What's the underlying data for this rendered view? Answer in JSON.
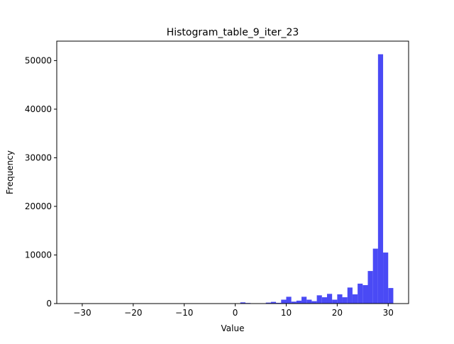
{
  "chart_data": {
    "type": "bar",
    "title": "Histogram_table_9_iter_23",
    "xlabel": "Value",
    "ylabel": "Frequency",
    "xlim": [
      -35,
      34
    ],
    "ylim": [
      0,
      54000
    ],
    "grid": false,
    "legend": "none",
    "bar_color": "#4a4af5",
    "x_ticks": [
      -30,
      -20,
      -10,
      0,
      10,
      20,
      30
    ],
    "y_ticks": [
      0,
      10000,
      20000,
      30000,
      40000,
      50000
    ],
    "bin_width": 1,
    "bins": [
      {
        "x": 1,
        "y": 250
      },
      {
        "x": 2,
        "y": 120
      },
      {
        "x": 6,
        "y": 200
      },
      {
        "x": 7,
        "y": 350
      },
      {
        "x": 8,
        "y": 150
      },
      {
        "x": 9,
        "y": 800
      },
      {
        "x": 10,
        "y": 1400
      },
      {
        "x": 11,
        "y": 400
      },
      {
        "x": 12,
        "y": 600
      },
      {
        "x": 13,
        "y": 1400
      },
      {
        "x": 14,
        "y": 800
      },
      {
        "x": 15,
        "y": 500
      },
      {
        "x": 16,
        "y": 1700
      },
      {
        "x": 17,
        "y": 1300
      },
      {
        "x": 18,
        "y": 2000
      },
      {
        "x": 19,
        "y": 800
      },
      {
        "x": 20,
        "y": 1900
      },
      {
        "x": 21,
        "y": 1300
      },
      {
        "x": 22,
        "y": 3300
      },
      {
        "x": 23,
        "y": 1900
      },
      {
        "x": 24,
        "y": 4100
      },
      {
        "x": 25,
        "y": 3800
      },
      {
        "x": 26,
        "y": 6700
      },
      {
        "x": 27,
        "y": 11300
      },
      {
        "x": 28,
        "y": 51300
      },
      {
        "x": 29,
        "y": 10500
      },
      {
        "x": 30,
        "y": 3200
      }
    ]
  }
}
